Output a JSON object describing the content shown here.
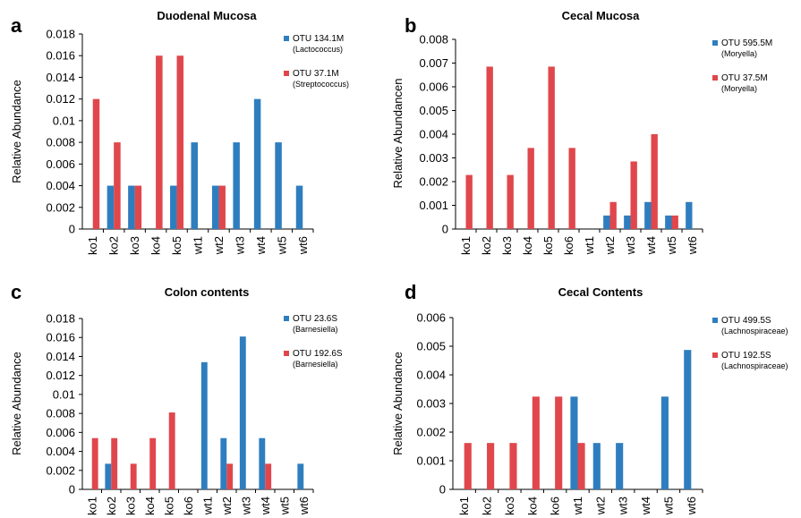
{
  "chart_data": [
    {
      "panel": "a",
      "type": "bar",
      "title": "Duodenal Mucosa",
      "ylabel": "Relative Abundance",
      "xlabel": "",
      "ylim": [
        0,
        0.018
      ],
      "yticks": [
        "0",
        "0.002",
        "0.004",
        "0.006",
        "0.008",
        "0.01",
        "0.012",
        "0.014",
        "0.016",
        "0.018"
      ],
      "categories": [
        "ko1",
        "ko2",
        "ko3",
        "ko4",
        "ko5",
        "wt1",
        "wt2",
        "wt3",
        "wt4",
        "wt5",
        "wt6"
      ],
      "series": [
        {
          "name": "OTU 134.1M",
          "subname": "(Lactococcus)",
          "color": "#2e7ebf",
          "values": [
            0,
            0.004,
            0.004,
            0,
            0.004,
            0.008,
            0.004,
            0.008,
            0.012,
            0.008,
            0.004
          ]
        },
        {
          "name": "OTU 37.1M",
          "subname": "(Streptococcus)",
          "color": "#e0474c",
          "values": [
            0.012,
            0.008,
            0.004,
            0.016,
            0.016,
            0,
            0.004,
            0,
            0,
            0,
            0
          ]
        }
      ],
      "grid": false,
      "legend_position": "right"
    },
    {
      "panel": "b",
      "type": "bar",
      "title": "Cecal Mucosa",
      "ylabel": "Relative Abundancen",
      "xlabel": "",
      "ylim": [
        0,
        0.008
      ],
      "yticks": [
        "0",
        "0.001",
        "0.002",
        "0.003",
        "0.004",
        "0.005",
        "0.006",
        "0.007",
        "0.008"
      ],
      "categories": [
        "ko1",
        "ko2",
        "ko3",
        "ko4",
        "ko5",
        "ko6",
        "wt1",
        "wt2",
        "wt3",
        "wt4",
        "wt5",
        "wt6"
      ],
      "series": [
        {
          "name": "OTU 595.5M",
          "subname": "(Moryella)",
          "color": "#2e7ebf",
          "values": [
            0,
            0,
            0,
            0,
            0,
            0,
            0,
            0.00057,
            0.00057,
            0.00114,
            0.00057,
            0.00114
          ]
        },
        {
          "name": "OTU 37.5M",
          "subname": "(Moryella)",
          "color": "#e0474c",
          "values": [
            0.00228,
            0.00685,
            0.00228,
            0.00342,
            0.00685,
            0.00342,
            0,
            0.00114,
            0.00285,
            0.004,
            0.00057,
            0
          ]
        }
      ],
      "grid": false,
      "legend_position": "right"
    },
    {
      "panel": "c",
      "type": "bar",
      "title": "Colon contents",
      "ylabel": "Relative Abundance",
      "xlabel": "",
      "ylim": [
        0,
        0.018
      ],
      "yticks": [
        "0",
        "0.002",
        "0.004",
        "0.006",
        "0.008",
        "0.01",
        "0.012",
        "0.014",
        "0.016",
        "0.018"
      ],
      "categories": [
        "ko1",
        "ko2",
        "ko3",
        "ko4",
        "ko5",
        "ko6",
        "wt1",
        "wt2",
        "wt3",
        "wt4",
        "wt5",
        "wt6"
      ],
      "series": [
        {
          "name": "OTU 23.6S",
          "subname": "(Barnesiella)",
          "color": "#2e7ebf",
          "values": [
            0,
            0.0027,
            0,
            0,
            0,
            0,
            0.0134,
            0.0054,
            0.0161,
            0.0054,
            0,
            0.0027
          ]
        },
        {
          "name": "OTU 192.6S",
          "subname": "(Barnesiella)",
          "color": "#e0474c",
          "values": [
            0.0054,
            0.0054,
            0.0027,
            0.0054,
            0.0081,
            0,
            0,
            0.0027,
            0,
            0.0027,
            0,
            0
          ]
        }
      ],
      "grid": false,
      "legend_position": "right"
    },
    {
      "panel": "d",
      "type": "bar",
      "title": "Cecal Contents",
      "ylabel": "Relative Abundance",
      "xlabel": "",
      "ylim": [
        0,
        0.006
      ],
      "yticks": [
        "0",
        "0.001",
        "0.002",
        "0.003",
        "0.004",
        "0.005",
        "0.006"
      ],
      "categories": [
        "ko1",
        "ko2",
        "ko3",
        "ko4",
        "ko6",
        "wt1",
        "wt2",
        "wt3",
        "wt4",
        "wt5",
        "wt6"
      ],
      "series": [
        {
          "name": "OTU 499.5S",
          "subname": "(Lachnospiraceae)",
          "color": "#2e7ebf",
          "values": [
            0,
            0,
            0,
            0,
            0,
            0.00324,
            0.00162,
            0.00162,
            0,
            0.00324,
            0.00487
          ]
        },
        {
          "name": "OTU 192.5S",
          "subname": "(Lachnospiraceae)",
          "color": "#e0474c",
          "values": [
            0.00162,
            0.00162,
            0.00162,
            0.00324,
            0.00324,
            0.00162,
            0,
            0,
            0,
            0,
            0
          ]
        }
      ],
      "grid": false,
      "legend_position": "right"
    }
  ]
}
